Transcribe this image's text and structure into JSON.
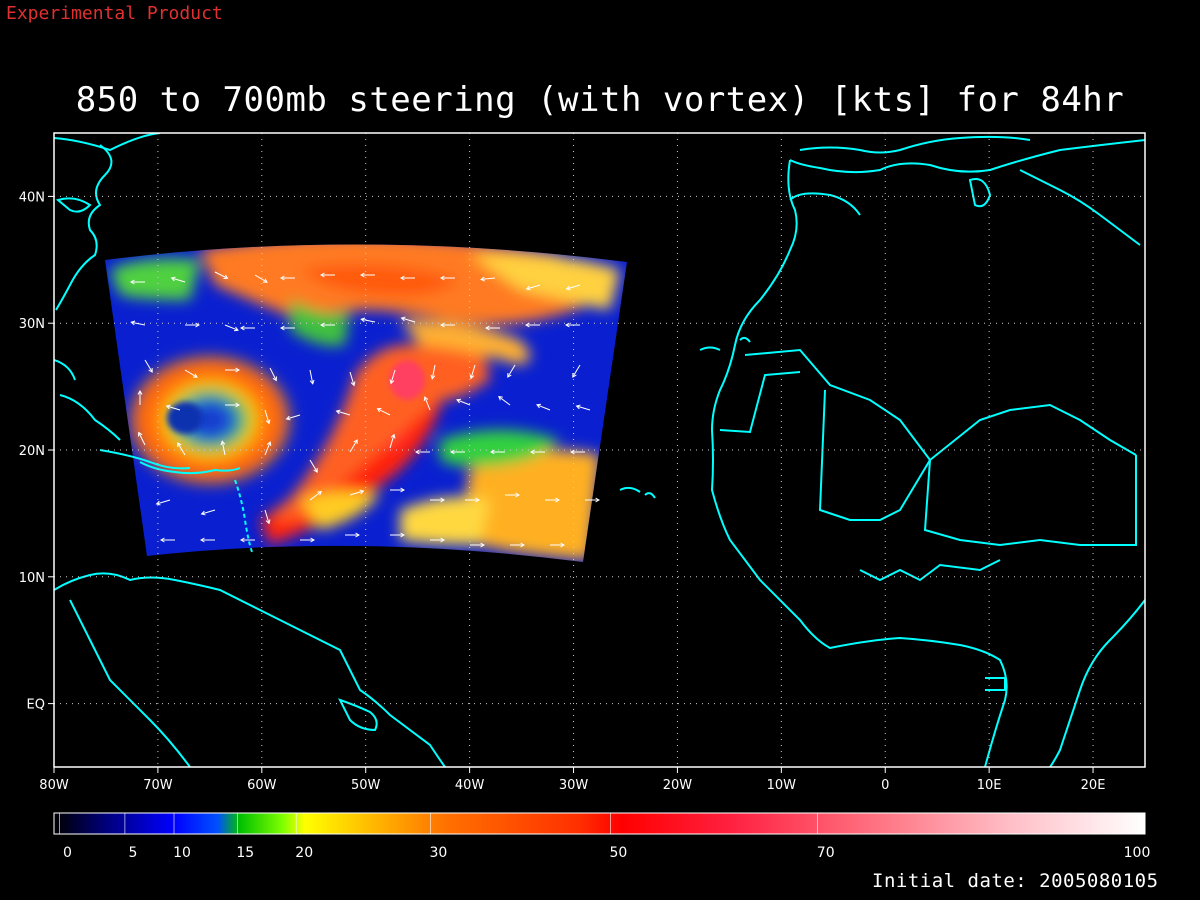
{
  "header": {
    "experimental_label": "Experimental Product",
    "title": "850 to 700mb steering (with vortex) [kts] for 84hr"
  },
  "footer": {
    "initial_date": "Initial date: 2005080105"
  },
  "map": {
    "lon_range": [
      -80,
      25
    ],
    "lat_range": [
      -5,
      45
    ],
    "lat_labels": [
      "40N",
      "30N",
      "20N",
      "10N",
      "EQ"
    ],
    "lat_values": [
      40,
      30,
      20,
      10,
      0
    ],
    "lon_labels": [
      "80W",
      "70W",
      "60W",
      "50W",
      "40W",
      "30W",
      "20W",
      "10W",
      "0",
      "10E",
      "20E"
    ],
    "lon_values": [
      -80,
      -70,
      -60,
      -50,
      -40,
      -30,
      -20,
      -10,
      0,
      10,
      20
    ],
    "coastline_color": "#00ffff",
    "grid": "dotted"
  },
  "colorbar": {
    "labels": [
      "0",
      "5",
      "10",
      "15",
      "20",
      "30",
      "50",
      "70",
      "100"
    ],
    "values": [
      0,
      5,
      10,
      15,
      20,
      30,
      50,
      70,
      100
    ]
  },
  "colors": {
    "background": "#000000",
    "coast": "#00ffff",
    "experimental": "#e03030",
    "text": "#ffffff"
  }
}
